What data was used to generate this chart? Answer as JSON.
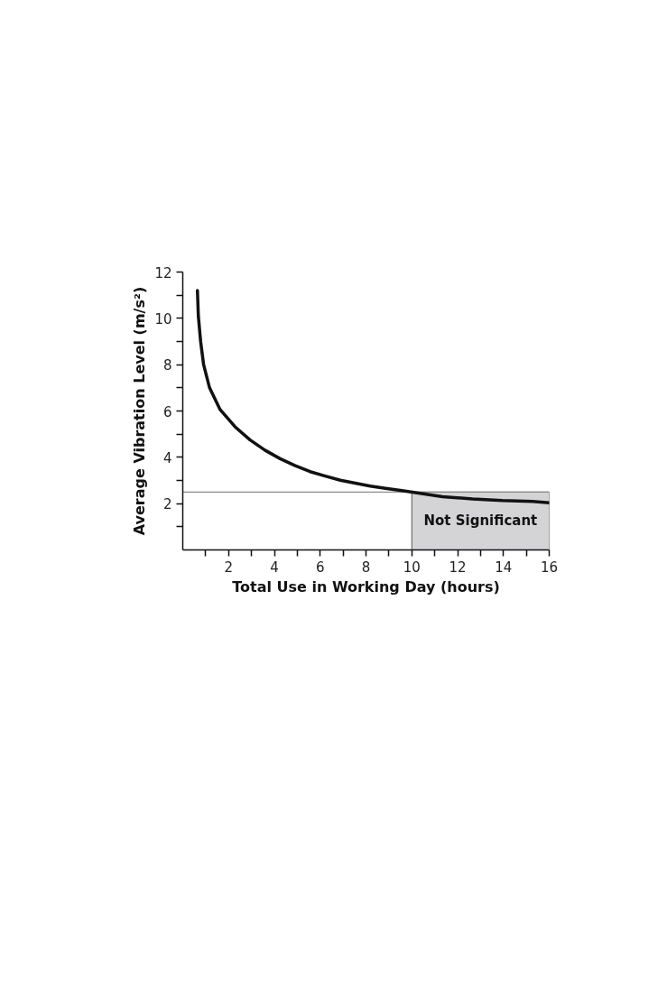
{
  "chart_data": {
    "type": "line",
    "xlabel": "Total Use in Working Day (hours)",
    "ylabel": "Average Vibration Level (m/s²)",
    "x": [
      0.64,
      0.68,
      0.78,
      0.91,
      1.17,
      1.63,
      2.28,
      2.94,
      3.6,
      4.25,
      4.91,
      5.56,
      6.22,
      6.88,
      7.53,
      8.19,
      8.85,
      9.5,
      10.03,
      11.34,
      12.65,
      13.96,
      15.28,
      16.0
    ],
    "series": [
      {
        "color": "#111111",
        "values": [
          11.2,
          10.1,
          9.0,
          8.0,
          7.0,
          6.06,
          5.32,
          4.75,
          4.3,
          3.94,
          3.64,
          3.38,
          3.19,
          3.01,
          2.88,
          2.76,
          2.66,
          2.57,
          2.49,
          2.3,
          2.2,
          2.13,
          2.09,
          2.04
        ]
      }
    ],
    "xlim": [
      0,
      16
    ],
    "ylim": [
      0,
      12
    ],
    "xticks": [
      {
        "value": 1,
        "label": null
      },
      2,
      {
        "value": 3,
        "label": null
      },
      4,
      {
        "value": 5,
        "label": null
      },
      6,
      {
        "value": 7,
        "label": null
      },
      8,
      {
        "value": 9,
        "label": null
      },
      10,
      {
        "value": 11,
        "label": null
      },
      12,
      {
        "value": 13,
        "label": null
      },
      14,
      {
        "value": 15,
        "label": null
      },
      16
    ],
    "yticks": [
      {
        "value": 1,
        "label": null
      },
      2,
      {
        "value": 3,
        "label": null
      },
      4,
      {
        "value": 5,
        "label": null
      },
      6,
      {
        "value": 7,
        "label": null
      },
      8,
      {
        "value": 9,
        "label": null
      },
      10,
      {
        "value": 11,
        "label": null
      },
      12
    ],
    "ref_lines": [
      {
        "axis": "y",
        "value": 2.5,
        "color": "#8c8c8c"
      }
    ],
    "bands": [
      {
        "axis": "x",
        "from": 10,
        "to": 16,
        "label": "Not Significant",
        "color": "#d4d4d6"
      }
    ],
    "line_style": "solid"
  }
}
